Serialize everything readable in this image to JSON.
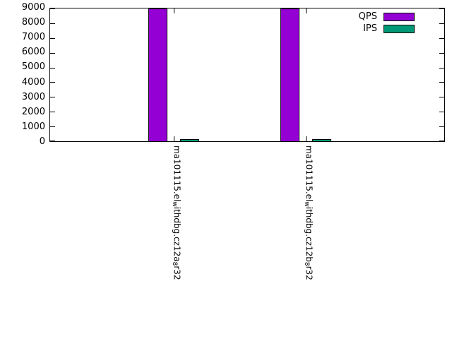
{
  "chart_data": {
    "type": "bar",
    "title": "",
    "xlabel": "",
    "ylabel": "",
    "categories": [
      "ma101115.el_withdbg.cz12a_8r32",
      "ma101115.el_withdbg.cz12b_8r32"
    ],
    "series": [
      {
        "name": "QPS",
        "color": "#9400d3",
        "values": [
          9000,
          9000
        ]
      },
      {
        "name": "IPS",
        "color": "#009977",
        "values": [
          150,
          150
        ]
      }
    ],
    "ylim": [
      0,
      9000
    ],
    "yticks": [
      0,
      1000,
      2000,
      3000,
      4000,
      5000,
      6000,
      7000,
      8000,
      9000
    ],
    "grid": false,
    "legend_position": "top-right",
    "axis_color": "#000000",
    "background_color": "#ffffff",
    "xtick_rotation": -90,
    "label_subscript_marker": "_"
  }
}
